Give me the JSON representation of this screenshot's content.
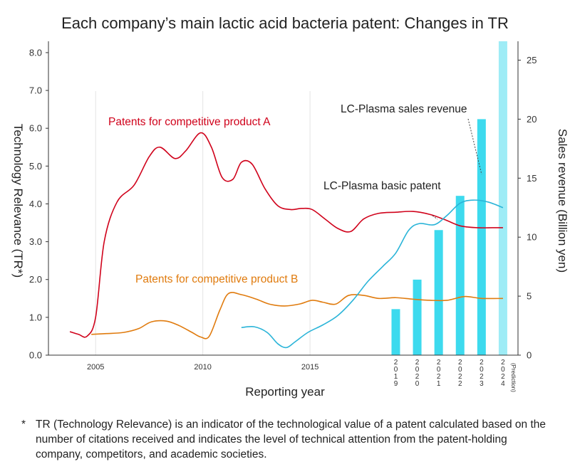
{
  "chart_data": {
    "type": "line",
    "title": "Each company’s main lactic acid bacteria patent: Changes in TR",
    "xlabel": "Reporting year",
    "ylabel_left": "Technology Relevance (TR*)",
    "ylabel_right": "Sales revenue (Billion yen)",
    "x_ticks": [
      "2005",
      "2010",
      "2015"
    ],
    "y_left_ticks": [
      "0.0",
      "1.0",
      "2.0",
      "3.0",
      "4.0",
      "5.0",
      "6.0",
      "7.0",
      "8.0"
    ],
    "y_right_ticks": [
      "0",
      "5",
      "10",
      "15",
      "20",
      "25"
    ],
    "xlim": [
      2002.8,
      2024.7
    ],
    "ylim_left": [
      0,
      8.3
    ],
    "ylim_right": [
      0,
      26.6
    ],
    "grid": "vertical lines at 2005, 2010, 2015",
    "series": [
      {
        "name": "Patents for competitive product A",
        "color": "#d0021b",
        "axis": "left",
        "x": [
          2003.8,
          2004.2,
          2004.6,
          2005.0,
          2005.4,
          2006.0,
          2006.8,
          2007.5,
          2008.0,
          2008.7,
          2009.2,
          2009.9,
          2010.4,
          2010.9,
          2011.4,
          2011.8,
          2012.3,
          2012.9,
          2013.5,
          2014.1,
          2014.6,
          2015.1,
          2015.7,
          2016.3,
          2016.9,
          2017.5,
          2018.2,
          2019.0,
          2019.8,
          2020.6,
          2021.3,
          2022.0,
          2022.8,
          2023.5,
          2024.0
        ],
        "y": [
          0.62,
          0.55,
          0.5,
          1.0,
          3.0,
          4.05,
          4.5,
          5.25,
          5.5,
          5.2,
          5.4,
          5.88,
          5.5,
          4.7,
          4.65,
          5.1,
          5.05,
          4.4,
          3.95,
          3.85,
          3.88,
          3.85,
          3.6,
          3.35,
          3.27,
          3.6,
          3.75,
          3.78,
          3.8,
          3.72,
          3.58,
          3.42,
          3.37,
          3.37,
          3.37
        ]
      },
      {
        "name": "Patents for competitive product B",
        "color": "#e07b0e",
        "axis": "left",
        "x": [
          2004.8,
          2005.5,
          2006.3,
          2007.0,
          2007.6,
          2008.3,
          2008.9,
          2009.5,
          2009.9,
          2010.3,
          2010.8,
          2011.2,
          2011.8,
          2012.5,
          2013.1,
          2013.8,
          2014.5,
          2015.1,
          2015.6,
          2016.2,
          2016.8,
          2017.5,
          2018.2,
          2019.0,
          2019.8,
          2020.6,
          2021.4,
          2022.2,
          2023.0,
          2024.0
        ],
        "y": [
          0.55,
          0.57,
          0.6,
          0.7,
          0.88,
          0.9,
          0.78,
          0.6,
          0.48,
          0.5,
          1.2,
          1.63,
          1.6,
          1.48,
          1.35,
          1.3,
          1.35,
          1.45,
          1.4,
          1.35,
          1.58,
          1.58,
          1.5,
          1.52,
          1.48,
          1.45,
          1.45,
          1.55,
          1.5,
          1.5
        ]
      },
      {
        "name": "LC-Plasma basic patent",
        "color": "#2ab4d8",
        "axis": "left",
        "x": [
          2011.8,
          2012.4,
          2013.0,
          2013.5,
          2013.9,
          2014.3,
          2014.9,
          2015.6,
          2016.3,
          2017.0,
          2017.7,
          2018.4,
          2019.0,
          2019.6,
          2020.1,
          2020.8,
          2021.4,
          2022.0,
          2022.6,
          2023.3,
          2024.0
        ],
        "y": [
          0.73,
          0.75,
          0.6,
          0.3,
          0.2,
          0.35,
          0.6,
          0.8,
          1.05,
          1.45,
          1.95,
          2.35,
          2.7,
          3.3,
          3.48,
          3.45,
          3.7,
          4.02,
          4.1,
          4.05,
          3.9
        ]
      }
    ],
    "bars": {
      "name": "LC-Plasma sales revenue",
      "axis": "right",
      "color": "#3ddaee",
      "prediction_color": "#9eecf6",
      "x": [
        2019,
        2020,
        2021,
        2022,
        2023,
        2024
      ],
      "x_label_chars": [
        [
          "2",
          "0",
          "1",
          "9"
        ],
        [
          "2",
          "0",
          "2",
          "0"
        ],
        [
          "2",
          "0",
          "2",
          "1"
        ],
        [
          "2",
          "0",
          "2",
          "2"
        ],
        [
          "2",
          "0",
          "2",
          "3"
        ],
        [
          "2",
          "0",
          "2",
          "4"
        ]
      ],
      "prediction_note": "(Prediction)",
      "values": [
        3.9,
        6.4,
        10.6,
        13.5,
        20.0,
        26.6
      ],
      "prediction": [
        false,
        false,
        false,
        false,
        false,
        true
      ]
    },
    "annotations": [
      {
        "text": "Patents for competitive product A",
        "color": "#d0021b"
      },
      {
        "text": "Patents for competitive product B",
        "color": "#e07b0e"
      },
      {
        "text": "LC-Plasma basic patent",
        "color": "#222222"
      },
      {
        "text": "LC-Plasma sales revenue",
        "color": "#222222"
      }
    ]
  },
  "footnote": {
    "mark": "*",
    "text": "TR (Technology Relevance) is an indicator of the technological value of a patent calculated based on the number of citations received and indicates the level of technical attention from the patent-holding company, competitors, and academic societies."
  }
}
